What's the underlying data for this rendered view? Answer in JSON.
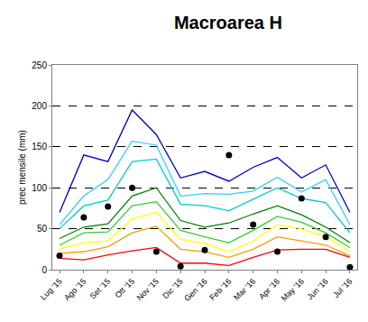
{
  "chart_data": {
    "type": "line",
    "title": "Macroarea H",
    "y_label": "prec mensile (mm)",
    "categories": [
      "Lug '15",
      "Ago '15",
      "Set '15",
      "Ott '15",
      "Nov '15",
      "Dic '15",
      "Gen '16",
      "Feb '16",
      "Mar '16",
      "Apr '16",
      "May '16",
      "Jun '16",
      "Jul '16"
    ],
    "ylim": [
      0,
      250
    ],
    "yticks": [
      0,
      50,
      100,
      150,
      200,
      250
    ],
    "grid": true,
    "series": [
      {
        "type": "line",
        "line_style": "solid",
        "color": "#0000cc",
        "values": [
          70,
          140,
          132,
          195,
          165,
          112,
          120,
          108,
          125,
          137,
          112,
          128,
          70
        ]
      },
      {
        "type": "line",
        "line_style": "solid",
        "color": "#33ccff",
        "values": [
          55,
          90,
          110,
          157,
          152,
          90,
          93,
          92,
          96,
          113,
          95,
          110,
          55
        ]
      },
      {
        "type": "line",
        "line_style": "solid",
        "color": "#00cccc",
        "values": [
          50,
          78,
          85,
          132,
          135,
          80,
          78,
          72,
          86,
          100,
          87,
          82,
          45
        ]
      },
      {
        "type": "line",
        "line_style": "solid",
        "color": "#008000",
        "values": [
          38,
          52,
          56,
          90,
          100,
          60,
          52,
          57,
          68,
          78,
          67,
          52,
          33
        ]
      },
      {
        "type": "line",
        "line_style": "solid",
        "color": "#33cc33",
        "values": [
          30,
          45,
          46,
          78,
          83,
          48,
          40,
          33,
          48,
          65,
          58,
          45,
          27
        ]
      },
      {
        "type": "line",
        "line_style": "solid",
        "color": "#ffff00",
        "values": [
          25,
          33,
          35,
          62,
          70,
          37,
          32,
          22,
          35,
          55,
          50,
          40,
          22
        ]
      },
      {
        "type": "line",
        "line_style": "solid",
        "color": "#ff9900",
        "values": [
          20,
          22,
          28,
          45,
          53,
          25,
          22,
          15,
          25,
          40,
          35,
          30,
          17
        ]
      },
      {
        "type": "line",
        "line_style": "solid",
        "color": "#ff0000",
        "values": [
          14,
          12,
          18,
          23,
          27,
          8,
          8,
          5,
          15,
          24,
          25,
          25,
          15
        ]
      },
      {
        "type": "scatter",
        "marker": "circle",
        "color": "#000000",
        "values": [
          17,
          64,
          77,
          100,
          22,
          4,
          24,
          140,
          55,
          22,
          87,
          40,
          3
        ]
      }
    ]
  }
}
